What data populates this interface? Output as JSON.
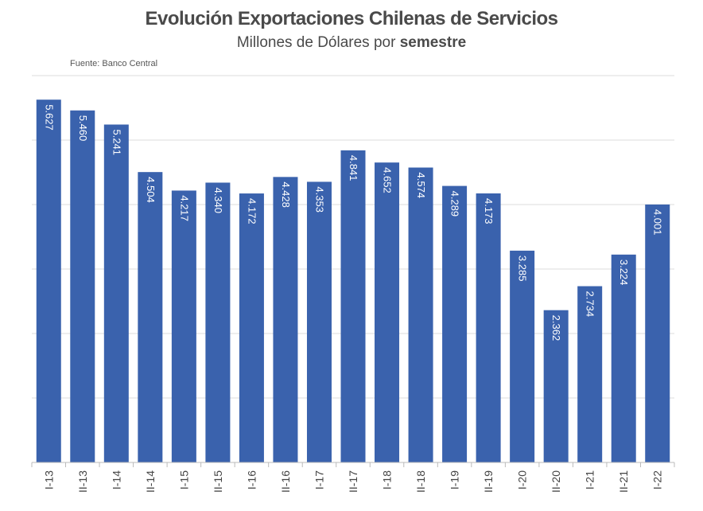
{
  "header": {
    "title": "Evolución  Exportaciones Chilenas de  Servicios",
    "subtitle_prefix": "Millones de Dólares por ",
    "subtitle_bold": "semestre",
    "source": "Fuente: Banco Central"
  },
  "chart_data": {
    "type": "bar",
    "title": "Evolución  Exportaciones Chilenas de  Servicios",
    "subtitle": "Millones de Dólares por semestre",
    "categories": [
      "I-13",
      "II-13",
      "I-14",
      "II-14",
      "I-15",
      "II-15",
      "I-16",
      "II-16",
      "I-17",
      "II-17",
      "I-18",
      "II-18",
      "I-19",
      "II-19",
      "I-20",
      "II-20",
      "I-21",
      "II-21",
      "I-22"
    ],
    "values": [
      5627,
      5460,
      5241,
      4504,
      4217,
      4340,
      4172,
      4428,
      4353,
      4841,
      4652,
      4574,
      4289,
      4173,
      3285,
      2362,
      2734,
      3224,
      4001
    ],
    "value_labels": [
      "5.627",
      "5.460",
      "5.241",
      "4.504",
      "4.217",
      "4.340",
      "4.172",
      "4.428",
      "4.353",
      "4.841",
      "4.652",
      "4.574",
      "4.289",
      "4.173",
      "3.285",
      "2.362",
      "2.734",
      "3.224",
      "4.001"
    ],
    "ylim": [
      0,
      6000
    ],
    "grid": true,
    "bar_color": "#3a62ad",
    "grid_color": "#dcdcdc",
    "axis_color": "#bbbbbb"
  }
}
